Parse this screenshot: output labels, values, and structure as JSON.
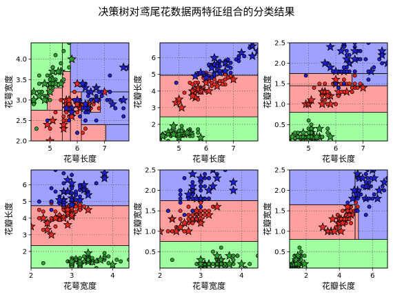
{
  "page": {
    "title": "决策树对鸢尾花数据两特征组合的分类结果"
  },
  "colors": {
    "setosa_region": "#a0ffa0",
    "versicolor_region": "#ffa0a0",
    "virginica_region": "#a0a0ff",
    "setosa_point": "#2ca02c",
    "versicolor_point": "#e8281e",
    "virginica_point": "#1f1fcf",
    "marker_edge": "#000000"
  },
  "legend_markers": {
    "train": "circle",
    "test": "star"
  },
  "chart_data": [
    {
      "type": "scatter",
      "x_feature": "sepal_length",
      "y_feature": "sepal_width",
      "xlabel": "花萼长度",
      "ylabel": "花萼宽度",
      "xlim": [
        4.3,
        7.9
      ],
      "ylim": [
        2.0,
        4.4
      ],
      "xticks": [
        5,
        6,
        7
      ],
      "yticks": [
        2.0,
        2.5,
        3.0,
        3.5,
        4.0
      ],
      "grid": true,
      "regions": [
        {
          "class": "setosa",
          "x": [
            4.3,
            5.45
          ],
          "y": [
            2.75,
            4.4
          ]
        },
        {
          "class": "setosa",
          "x": [
            5.45,
            5.75
          ],
          "y": [
            3.7,
            4.4
          ]
        },
        {
          "class": "versicolor",
          "x": [
            4.3,
            5.45
          ],
          "y": [
            2.0,
            2.75
          ]
        },
        {
          "class": "versicolor",
          "x": [
            5.45,
            5.75
          ],
          "y": [
            2.0,
            3.7
          ]
        },
        {
          "class": "versicolor",
          "x": [
            5.75,
            6.15
          ],
          "y": [
            2.0,
            3.2
          ]
        },
        {
          "class": "versicolor",
          "x": [
            6.15,
            7.05
          ],
          "y": [
            2.0,
            2.4
          ]
        },
        {
          "class": "versicolor",
          "x": [
            4.9,
            5.45
          ],
          "y": [
            2.75,
            3.3
          ]
        },
        {
          "class": "virginica",
          "x": [
            5.75,
            7.9
          ],
          "y": [
            3.2,
            4.4
          ]
        },
        {
          "class": "virginica",
          "x": [
            6.15,
            7.9
          ],
          "y": [
            2.4,
            3.2
          ]
        },
        {
          "class": "virginica",
          "x": [
            7.05,
            7.9
          ],
          "y": [
            2.0,
            2.4
          ]
        },
        {
          "class": "versicolor",
          "x": [
            6.5,
            6.85
          ],
          "y": [
            2.7,
            3.05
          ]
        }
      ]
    },
    {
      "type": "scatter",
      "x_feature": "sepal_length",
      "y_feature": "petal_length",
      "xlabel": "花萼长度",
      "ylabel": "花瓣长度",
      "xlim": [
        4.3,
        7.9
      ],
      "ylim": [
        1.0,
        6.9
      ],
      "xticks": [
        5,
        6,
        7
      ],
      "yticks": [
        2,
        3,
        4,
        5,
        6
      ],
      "grid": true,
      "regions": [
        {
          "class": "setosa",
          "x": [
            4.3,
            7.9
          ],
          "y": [
            1.0,
            2.45
          ]
        },
        {
          "class": "versicolor",
          "x": [
            4.3,
            7.9
          ],
          "y": [
            2.45,
            4.95
          ]
        },
        {
          "class": "virginica",
          "x": [
            4.3,
            7.9
          ],
          "y": [
            4.95,
            6.9
          ]
        },
        {
          "class": "versicolor",
          "x": [
            5.6,
            6.2
          ],
          "y": [
            4.95,
            5.1
          ]
        }
      ]
    },
    {
      "type": "scatter",
      "x_feature": "sepal_length",
      "y_feature": "petal_width",
      "xlabel": "花萼长度",
      "ylabel": "花瓣宽度",
      "xlim": [
        4.3,
        7.9
      ],
      "ylim": [
        0.1,
        2.5
      ],
      "xticks": [
        5,
        6,
        7
      ],
      "yticks": [
        0.5,
        1.0,
        1.5,
        2.0,
        2.5
      ],
      "grid": true,
      "regions": [
        {
          "class": "setosa",
          "x": [
            4.3,
            7.9
          ],
          "y": [
            0.1,
            0.8
          ]
        },
        {
          "class": "versicolor",
          "x": [
            4.3,
            7.9
          ],
          "y": [
            0.8,
            1.45
          ]
        },
        {
          "class": "versicolor",
          "x": [
            4.3,
            6.6
          ],
          "y": [
            1.45,
            1.75
          ]
        },
        {
          "class": "virginica",
          "x": [
            6.6,
            7.9
          ],
          "y": [
            1.45,
            1.75
          ]
        },
        {
          "class": "virginica",
          "x": [
            4.3,
            7.9
          ],
          "y": [
            1.75,
            2.5
          ]
        }
      ]
    },
    {
      "type": "scatter",
      "x_feature": "sepal_width",
      "y_feature": "petal_length",
      "xlabel": "花萼宽度",
      "ylabel": "花瓣长度",
      "xlim": [
        2.0,
        4.4
      ],
      "ylim": [
        1.0,
        6.9
      ],
      "xticks": [
        2,
        3,
        4
      ],
      "yticks": [
        2,
        3,
        4,
        5,
        6
      ],
      "grid": true,
      "regions": [
        {
          "class": "setosa",
          "x": [
            2.0,
            4.4
          ],
          "y": [
            1.0,
            2.35
          ]
        },
        {
          "class": "versicolor",
          "x": [
            2.0,
            4.4
          ],
          "y": [
            2.35,
            4.75
          ]
        },
        {
          "class": "virginica",
          "x": [
            2.0,
            4.4
          ],
          "y": [
            4.75,
            6.9
          ]
        }
      ]
    },
    {
      "type": "scatter",
      "x_feature": "sepal_width",
      "y_feature": "petal_width",
      "xlabel": "花萼宽度",
      "ylabel": "花瓣宽度",
      "xlim": [
        2.0,
        4.4
      ],
      "ylim": [
        0.1,
        2.5
      ],
      "xticks": [
        2,
        3,
        4
      ],
      "yticks": [
        0.5,
        1.0,
        1.5,
        2.0,
        2.5
      ],
      "grid": true,
      "regions": [
        {
          "class": "setosa",
          "x": [
            2.0,
            4.4
          ],
          "y": [
            0.1,
            0.75
          ]
        },
        {
          "class": "versicolor",
          "x": [
            2.0,
            4.4
          ],
          "y": [
            0.75,
            1.75
          ]
        },
        {
          "class": "virginica",
          "x": [
            2.0,
            4.4
          ],
          "y": [
            1.75,
            2.5
          ]
        }
      ]
    },
    {
      "type": "scatter",
      "x_feature": "petal_length",
      "y_feature": "petal_width",
      "xlabel": "花瓣长度",
      "ylabel": "花瓣宽度",
      "xlim": [
        1.0,
        6.9
      ],
      "ylim": [
        0.1,
        2.5
      ],
      "xticks": [
        2,
        4,
        6
      ],
      "yticks": [
        0.5,
        1.0,
        1.5,
        2.0,
        2.5
      ],
      "grid": true,
      "regions": [
        {
          "class": "setosa",
          "x": [
            1.0,
            6.9
          ],
          "y": [
            0.1,
            0.8
          ]
        },
        {
          "class": "versicolor",
          "x": [
            1.0,
            4.95
          ],
          "y": [
            0.8,
            1.65
          ]
        },
        {
          "class": "virginica",
          "x": [
            1.0,
            4.95
          ],
          "y": [
            1.65,
            2.5
          ]
        },
        {
          "class": "virginica",
          "x": [
            4.95,
            6.9
          ],
          "y": [
            0.8,
            2.5
          ]
        },
        {
          "class": "versicolor",
          "x": [
            4.95,
            5.15
          ],
          "y": [
            0.8,
            1.55
          ]
        }
      ]
    }
  ],
  "iris": {
    "setosa": [
      [
        5.1,
        3.5,
        1.4,
        0.2
      ],
      [
        4.9,
        3.0,
        1.4,
        0.2
      ],
      [
        4.7,
        3.2,
        1.3,
        0.2
      ],
      [
        4.6,
        3.1,
        1.5,
        0.2
      ],
      [
        5.0,
        3.6,
        1.4,
        0.2
      ],
      [
        5.4,
        3.9,
        1.7,
        0.4
      ],
      [
        4.6,
        3.4,
        1.4,
        0.3
      ],
      [
        5.0,
        3.4,
        1.5,
        0.2
      ],
      [
        4.4,
        2.9,
        1.4,
        0.2
      ],
      [
        4.9,
        3.1,
        1.5,
        0.1
      ],
      [
        5.4,
        3.7,
        1.5,
        0.2
      ],
      [
        4.8,
        3.4,
        1.6,
        0.2
      ],
      [
        4.8,
        3.0,
        1.4,
        0.1
      ],
      [
        4.3,
        3.0,
        1.1,
        0.1
      ],
      [
        5.8,
        4.0,
        1.2,
        0.2
      ],
      [
        5.7,
        4.4,
        1.5,
        0.4
      ],
      [
        5.4,
        3.9,
        1.3,
        0.4
      ],
      [
        5.1,
        3.5,
        1.4,
        0.3
      ],
      [
        5.7,
        3.8,
        1.7,
        0.3
      ],
      [
        5.1,
        3.8,
        1.5,
        0.3
      ],
      [
        5.4,
        3.4,
        1.7,
        0.2
      ],
      [
        5.1,
        3.7,
        1.5,
        0.4
      ],
      [
        4.6,
        3.6,
        1.0,
        0.2
      ],
      [
        5.1,
        3.3,
        1.7,
        0.5
      ],
      [
        4.8,
        3.4,
        1.9,
        0.2
      ],
      [
        5.0,
        3.0,
        1.6,
        0.2
      ],
      [
        5.0,
        3.4,
        1.6,
        0.4
      ],
      [
        5.2,
        3.5,
        1.5,
        0.2
      ],
      [
        5.2,
        3.4,
        1.4,
        0.2
      ],
      [
        4.7,
        3.2,
        1.6,
        0.2
      ],
      [
        4.8,
        3.1,
        1.6,
        0.2
      ],
      [
        5.4,
        3.4,
        1.5,
        0.4
      ],
      [
        5.2,
        4.1,
        1.5,
        0.1
      ],
      [
        5.5,
        4.2,
        1.4,
        0.2
      ],
      [
        4.9,
        3.1,
        1.5,
        0.2
      ],
      [
        5.0,
        3.2,
        1.2,
        0.2
      ],
      [
        5.5,
        3.5,
        1.3,
        0.2
      ],
      [
        4.9,
        3.6,
        1.4,
        0.1
      ],
      [
        4.4,
        3.0,
        1.3,
        0.2
      ],
      [
        5.1,
        3.4,
        1.5,
        0.2
      ],
      [
        5.0,
        3.5,
        1.3,
        0.3
      ],
      [
        4.5,
        2.3,
        1.3,
        0.3
      ],
      [
        4.4,
        3.2,
        1.3,
        0.2
      ],
      [
        5.0,
        3.5,
        1.6,
        0.6
      ],
      [
        5.1,
        3.8,
        1.9,
        0.4
      ],
      [
        4.8,
        3.0,
        1.4,
        0.3
      ],
      [
        5.1,
        3.8,
        1.6,
        0.2
      ],
      [
        4.6,
        3.2,
        1.4,
        0.2
      ],
      [
        5.3,
        3.7,
        1.5,
        0.2
      ],
      [
        5.0,
        3.3,
        1.4,
        0.2
      ]
    ],
    "versicolor": [
      [
        7.0,
        3.2,
        4.7,
        1.4
      ],
      [
        6.4,
        3.2,
        4.5,
        1.5
      ],
      [
        6.9,
        3.1,
        4.9,
        1.5
      ],
      [
        5.5,
        2.3,
        4.0,
        1.3
      ],
      [
        6.5,
        2.8,
        4.6,
        1.5
      ],
      [
        5.7,
        2.8,
        4.5,
        1.3
      ],
      [
        6.3,
        3.3,
        4.7,
        1.6
      ],
      [
        4.9,
        2.4,
        3.3,
        1.0
      ],
      [
        6.6,
        2.9,
        4.6,
        1.3
      ],
      [
        5.2,
        2.7,
        3.9,
        1.4
      ],
      [
        5.0,
        2.0,
        3.5,
        1.0
      ],
      [
        5.9,
        3.0,
        4.2,
        1.5
      ],
      [
        6.0,
        2.2,
        4.0,
        1.0
      ],
      [
        6.1,
        2.9,
        4.7,
        1.4
      ],
      [
        5.6,
        2.9,
        3.6,
        1.3
      ],
      [
        6.7,
        3.1,
        4.4,
        1.4
      ],
      [
        5.6,
        3.0,
        4.5,
        1.5
      ],
      [
        5.8,
        2.7,
        4.1,
        1.0
      ],
      [
        6.2,
        2.2,
        4.5,
        1.5
      ],
      [
        5.6,
        2.5,
        3.9,
        1.1
      ],
      [
        5.9,
        3.2,
        4.8,
        1.8
      ],
      [
        6.1,
        2.8,
        4.0,
        1.3
      ],
      [
        6.3,
        2.5,
        4.9,
        1.5
      ],
      [
        6.1,
        2.8,
        4.7,
        1.2
      ],
      [
        6.4,
        2.9,
        4.3,
        1.3
      ],
      [
        6.6,
        3.0,
        4.4,
        1.4
      ],
      [
        6.8,
        2.8,
        4.8,
        1.4
      ],
      [
        6.7,
        3.0,
        5.0,
        1.7
      ],
      [
        6.0,
        2.9,
        4.5,
        1.5
      ],
      [
        5.7,
        2.6,
        3.5,
        1.0
      ],
      [
        5.5,
        2.4,
        3.8,
        1.1
      ],
      [
        5.5,
        2.4,
        3.7,
        1.0
      ],
      [
        5.8,
        2.7,
        3.9,
        1.2
      ],
      [
        6.0,
        2.7,
        5.1,
        1.6
      ],
      [
        5.4,
        3.0,
        4.5,
        1.5
      ],
      [
        6.0,
        3.4,
        4.5,
        1.6
      ],
      [
        6.7,
        3.1,
        4.7,
        1.5
      ],
      [
        6.3,
        2.3,
        4.4,
        1.3
      ],
      [
        5.6,
        3.0,
        4.1,
        1.3
      ],
      [
        5.5,
        2.5,
        4.0,
        1.3
      ],
      [
        5.5,
        2.6,
        4.4,
        1.2
      ],
      [
        6.1,
        3.0,
        4.6,
        1.4
      ],
      [
        5.8,
        2.6,
        4.0,
        1.2
      ],
      [
        5.0,
        2.3,
        3.3,
        1.0
      ],
      [
        5.6,
        2.7,
        4.2,
        1.3
      ],
      [
        5.7,
        3.0,
        4.2,
        1.2
      ],
      [
        5.7,
        2.9,
        4.2,
        1.3
      ],
      [
        6.2,
        2.9,
        4.3,
        1.3
      ],
      [
        5.1,
        2.5,
        3.0,
        1.1
      ],
      [
        5.7,
        2.8,
        4.1,
        1.3
      ]
    ],
    "virginica": [
      [
        6.3,
        3.3,
        6.0,
        2.5
      ],
      [
        5.8,
        2.7,
        5.1,
        1.9
      ],
      [
        7.1,
        3.0,
        5.9,
        2.1
      ],
      [
        6.3,
        2.9,
        5.6,
        1.8
      ],
      [
        6.5,
        3.0,
        5.8,
        2.2
      ],
      [
        7.6,
        3.0,
        6.6,
        2.1
      ],
      [
        4.9,
        2.5,
        4.5,
        1.7
      ],
      [
        7.3,
        2.9,
        6.3,
        1.8
      ],
      [
        6.7,
        2.5,
        5.8,
        1.8
      ],
      [
        7.2,
        3.6,
        6.1,
        2.5
      ],
      [
        6.5,
        3.2,
        5.1,
        2.0
      ],
      [
        6.4,
        2.7,
        5.3,
        1.9
      ],
      [
        6.8,
        3.0,
        5.5,
        2.1
      ],
      [
        5.7,
        2.5,
        5.0,
        2.0
      ],
      [
        5.8,
        2.8,
        5.1,
        2.4
      ],
      [
        6.4,
        3.2,
        5.3,
        2.3
      ],
      [
        6.5,
        3.0,
        5.5,
        1.8
      ],
      [
        7.7,
        3.8,
        6.7,
        2.2
      ],
      [
        7.7,
        2.6,
        6.9,
        2.3
      ],
      [
        6.0,
        2.2,
        5.0,
        1.5
      ],
      [
        6.9,
        3.2,
        5.7,
        2.3
      ],
      [
        5.6,
        2.8,
        4.9,
        2.0
      ],
      [
        7.7,
        2.8,
        6.7,
        2.0
      ],
      [
        6.3,
        2.7,
        4.9,
        1.8
      ],
      [
        6.7,
        3.3,
        5.7,
        2.1
      ],
      [
        7.2,
        3.2,
        6.0,
        1.8
      ],
      [
        6.2,
        2.8,
        4.8,
        1.8
      ],
      [
        6.1,
        3.0,
        4.9,
        1.8
      ],
      [
        6.4,
        2.8,
        5.6,
        2.1
      ],
      [
        7.2,
        3.0,
        5.8,
        1.6
      ],
      [
        7.4,
        2.8,
        6.1,
        1.9
      ],
      [
        7.9,
        3.8,
        6.4,
        2.0
      ],
      [
        6.4,
        2.8,
        5.6,
        2.2
      ],
      [
        6.3,
        2.8,
        5.1,
        1.5
      ],
      [
        6.1,
        2.6,
        5.6,
        1.4
      ],
      [
        7.7,
        3.0,
        6.1,
        2.3
      ],
      [
        6.3,
        3.4,
        5.6,
        2.4
      ],
      [
        6.4,
        3.1,
        5.5,
        1.8
      ],
      [
        6.0,
        3.0,
        4.8,
        1.8
      ],
      [
        6.9,
        3.1,
        5.4,
        2.1
      ],
      [
        6.7,
        3.1,
        5.6,
        2.4
      ],
      [
        6.9,
        3.1,
        5.1,
        2.3
      ],
      [
        5.8,
        2.7,
        5.1,
        1.9
      ],
      [
        6.8,
        3.2,
        5.9,
        2.3
      ],
      [
        6.7,
        3.3,
        5.7,
        2.5
      ],
      [
        6.7,
        3.0,
        5.2,
        2.3
      ],
      [
        6.3,
        2.5,
        5.0,
        1.9
      ],
      [
        6.5,
        3.0,
        5.2,
        2.0
      ],
      [
        6.2,
        3.4,
        5.4,
        2.3
      ],
      [
        5.9,
        3.0,
        5.1,
        1.8
      ]
    ],
    "test_indices": [
      0,
      3,
      7,
      10,
      14,
      17,
      21,
      24,
      28,
      31,
      35,
      38,
      42,
      45,
      48
    ]
  }
}
